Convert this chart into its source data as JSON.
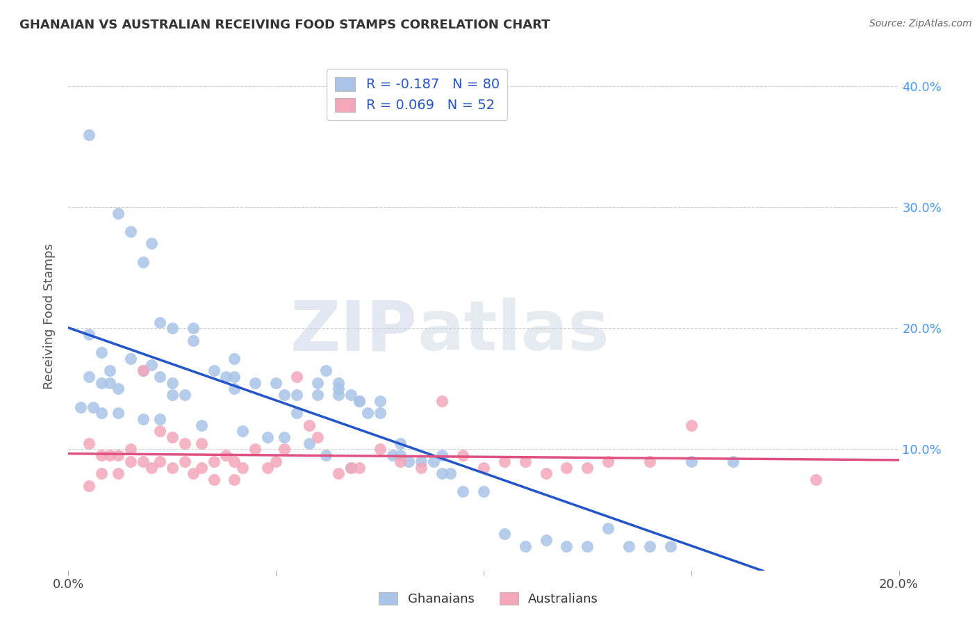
{
  "title": "GHANAIAN VS AUSTRALIAN RECEIVING FOOD STAMPS CORRELATION CHART",
  "source": "Source: ZipAtlas.com",
  "ylabel": "Receiving Food Stamps",
  "xlim": [
    0.0,
    0.2
  ],
  "ylim": [
    -0.02,
    0.42
  ],
  "plot_ylim": [
    0.0,
    0.42
  ],
  "ghanaian_color": "#aac4e8",
  "australian_color": "#f4a7b9",
  "trend_blue": "#2255cc",
  "trend_pink": "#e05080",
  "ghanaian_R": -0.187,
  "ghanaian_N": 80,
  "australian_R": 0.069,
  "australian_N": 52,
  "ghanaian_scatter_x": [
    0.005,
    0.012,
    0.005,
    0.008,
    0.01,
    0.015,
    0.018,
    0.022,
    0.025,
    0.03,
    0.005,
    0.008,
    0.01,
    0.012,
    0.015,
    0.018,
    0.02,
    0.022,
    0.025,
    0.025,
    0.028,
    0.03,
    0.035,
    0.038,
    0.04,
    0.04,
    0.045,
    0.05,
    0.052,
    0.055,
    0.06,
    0.062,
    0.065,
    0.065,
    0.068,
    0.07,
    0.072,
    0.075,
    0.078,
    0.08,
    0.082,
    0.085,
    0.088,
    0.09,
    0.09,
    0.092,
    0.095,
    0.1,
    0.105,
    0.11,
    0.115,
    0.12,
    0.125,
    0.13,
    0.135,
    0.14,
    0.145,
    0.04,
    0.055,
    0.06,
    0.065,
    0.07,
    0.075,
    0.08,
    0.003,
    0.006,
    0.008,
    0.012,
    0.018,
    0.022,
    0.032,
    0.042,
    0.048,
    0.052,
    0.058,
    0.062,
    0.068,
    0.02,
    0.15,
    0.16
  ],
  "ghanaian_scatter_y": [
    0.36,
    0.295,
    0.195,
    0.18,
    0.165,
    0.28,
    0.255,
    0.205,
    0.2,
    0.19,
    0.16,
    0.155,
    0.155,
    0.15,
    0.175,
    0.165,
    0.17,
    0.16,
    0.145,
    0.155,
    0.145,
    0.2,
    0.165,
    0.16,
    0.16,
    0.15,
    0.155,
    0.155,
    0.145,
    0.145,
    0.155,
    0.165,
    0.145,
    0.15,
    0.145,
    0.14,
    0.13,
    0.13,
    0.095,
    0.105,
    0.09,
    0.09,
    0.09,
    0.095,
    0.08,
    0.08,
    0.065,
    0.065,
    0.03,
    0.02,
    0.025,
    0.02,
    0.02,
    0.035,
    0.02,
    0.02,
    0.02,
    0.175,
    0.13,
    0.145,
    0.155,
    0.14,
    0.14,
    0.095,
    0.135,
    0.135,
    0.13,
    0.13,
    0.125,
    0.125,
    0.12,
    0.115,
    0.11,
    0.11,
    0.105,
    0.095,
    0.085,
    0.27,
    0.09,
    0.09
  ],
  "australian_scatter_x": [
    0.005,
    0.008,
    0.01,
    0.012,
    0.015,
    0.018,
    0.02,
    0.022,
    0.025,
    0.028,
    0.03,
    0.032,
    0.035,
    0.038,
    0.04,
    0.042,
    0.045,
    0.048,
    0.05,
    0.052,
    0.055,
    0.058,
    0.06,
    0.065,
    0.068,
    0.07,
    0.075,
    0.08,
    0.085,
    0.09,
    0.095,
    0.1,
    0.105,
    0.11,
    0.115,
    0.12,
    0.125,
    0.13,
    0.14,
    0.15,
    0.008,
    0.012,
    0.015,
    0.018,
    0.022,
    0.025,
    0.028,
    0.032,
    0.035,
    0.04,
    0.18,
    0.005
  ],
  "australian_scatter_y": [
    0.105,
    0.095,
    0.095,
    0.095,
    0.09,
    0.09,
    0.085,
    0.09,
    0.085,
    0.09,
    0.08,
    0.085,
    0.09,
    0.095,
    0.09,
    0.085,
    0.1,
    0.085,
    0.09,
    0.1,
    0.16,
    0.12,
    0.11,
    0.08,
    0.085,
    0.085,
    0.1,
    0.09,
    0.085,
    0.14,
    0.095,
    0.085,
    0.09,
    0.09,
    0.08,
    0.085,
    0.085,
    0.09,
    0.09,
    0.12,
    0.08,
    0.08,
    0.1,
    0.165,
    0.115,
    0.11,
    0.105,
    0.105,
    0.075,
    0.075,
    0.075,
    0.07
  ],
  "watermark_zip": "ZIP",
  "watermark_atlas": "atlas",
  "grid_color": "#cccccc",
  "right_tick_color": "#4499ff",
  "legend_text_color": "#2255cc"
}
